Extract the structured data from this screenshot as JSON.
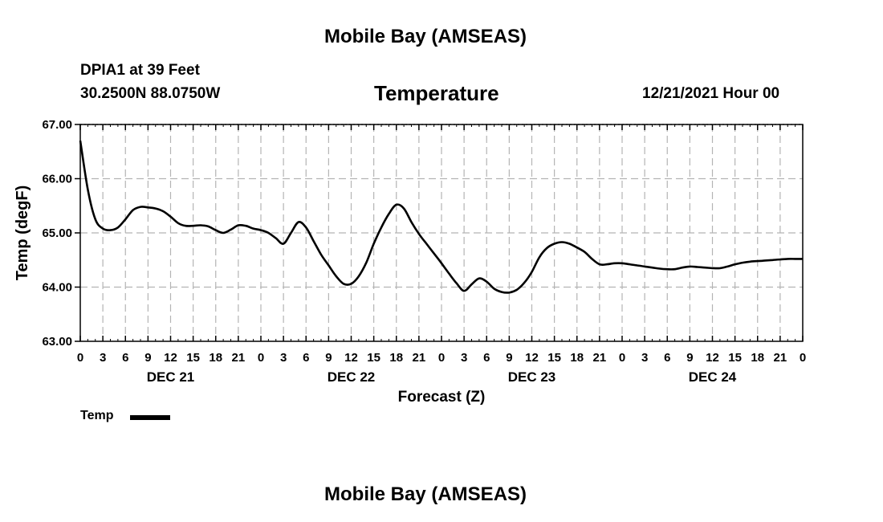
{
  "chart_data": {
    "type": "line",
    "title": "Mobile Bay (AMSEAS)",
    "subtitle": "Temperature",
    "station": "DPIA1 at 39 Feet",
    "location": "30.2500N  88.0750W",
    "datetime": "12/21/2021 Hour 00",
    "xlabel": "Forecast (Z)",
    "ylabel": "Temp (degF)",
    "xlim": [
      0,
      96
    ],
    "ylim": [
      63.0,
      67.0
    ],
    "y_ticks": [
      63.0,
      64.0,
      65.0,
      66.0,
      67.0
    ],
    "y_tick_labels": [
      "63.00",
      "64.00",
      "65.00",
      "66.00",
      "67.00"
    ],
    "x_tick_hours": [
      0,
      3,
      6,
      9,
      12,
      15,
      18,
      21,
      24,
      27,
      30,
      33,
      36,
      39,
      42,
      45,
      48,
      51,
      54,
      57,
      60,
      63,
      66,
      69,
      72,
      75,
      78,
      81,
      84,
      87,
      90,
      93,
      96
    ],
    "x_tick_labels": [
      "0",
      "3",
      "6",
      "9",
      "12",
      "15",
      "18",
      "21",
      "0",
      "3",
      "6",
      "9",
      "12",
      "15",
      "18",
      "21",
      "0",
      "3",
      "6",
      "9",
      "12",
      "15",
      "18",
      "21",
      "0",
      "3",
      "6",
      "9",
      "12",
      "15",
      "18",
      "21",
      "0"
    ],
    "day_labels": [
      {
        "hour": 12,
        "label": "DEC 21"
      },
      {
        "hour": 36,
        "label": "DEC 22"
      },
      {
        "hour": 60,
        "label": "DEC 23"
      },
      {
        "hour": 84,
        "label": "DEC 24"
      }
    ],
    "grid": true,
    "legend": {
      "position": "bottom-left",
      "entries": [
        "Temp"
      ]
    },
    "series": [
      {
        "name": "Temp",
        "x": [
          0,
          1,
          2,
          3,
          4,
          5,
          6,
          7,
          8,
          9,
          10,
          11,
          12,
          13,
          14,
          15,
          16,
          17,
          18,
          19,
          20,
          21,
          22,
          23,
          24,
          25,
          26,
          27,
          28,
          29,
          30,
          31,
          32,
          33,
          34,
          35,
          36,
          37,
          38,
          39,
          40,
          41,
          42,
          43,
          44,
          45,
          46,
          47,
          48,
          49,
          50,
          51,
          52,
          53,
          54,
          55,
          56,
          57,
          58,
          59,
          60,
          61,
          62,
          63,
          64,
          65,
          66,
          67,
          68,
          69,
          70,
          71,
          72,
          73,
          74,
          75,
          76,
          77,
          78,
          79,
          80,
          81,
          82,
          83,
          84,
          85,
          86,
          87,
          88,
          89,
          90,
          91,
          92,
          93,
          94,
          95,
          96
        ],
        "values": [
          66.7,
          65.8,
          65.25,
          65.08,
          65.05,
          65.1,
          65.25,
          65.42,
          65.48,
          65.47,
          65.45,
          65.4,
          65.3,
          65.18,
          65.13,
          65.13,
          65.14,
          65.12,
          65.05,
          65.0,
          65.06,
          65.14,
          65.13,
          65.08,
          65.05,
          65.0,
          64.9,
          64.8,
          65.0,
          65.2,
          65.1,
          64.85,
          64.6,
          64.4,
          64.2,
          64.06,
          64.06,
          64.2,
          64.45,
          64.8,
          65.1,
          65.35,
          65.52,
          65.45,
          65.2,
          64.98,
          64.8,
          64.62,
          64.44,
          64.25,
          64.07,
          63.93,
          64.05,
          64.16,
          64.1,
          63.97,
          63.91,
          63.9,
          63.95,
          64.08,
          64.28,
          64.55,
          64.72,
          64.8,
          64.83,
          64.8,
          64.73,
          64.65,
          64.52,
          64.42,
          64.42,
          64.44,
          64.44,
          64.42,
          64.4,
          64.38,
          64.36,
          64.34,
          64.33,
          64.33,
          64.36,
          64.38,
          64.37,
          64.36,
          64.35,
          64.35,
          64.38,
          64.42,
          64.45,
          64.47,
          64.48,
          64.49,
          64.5,
          64.51,
          64.52,
          64.52,
          64.52
        ]
      }
    ]
  }
}
